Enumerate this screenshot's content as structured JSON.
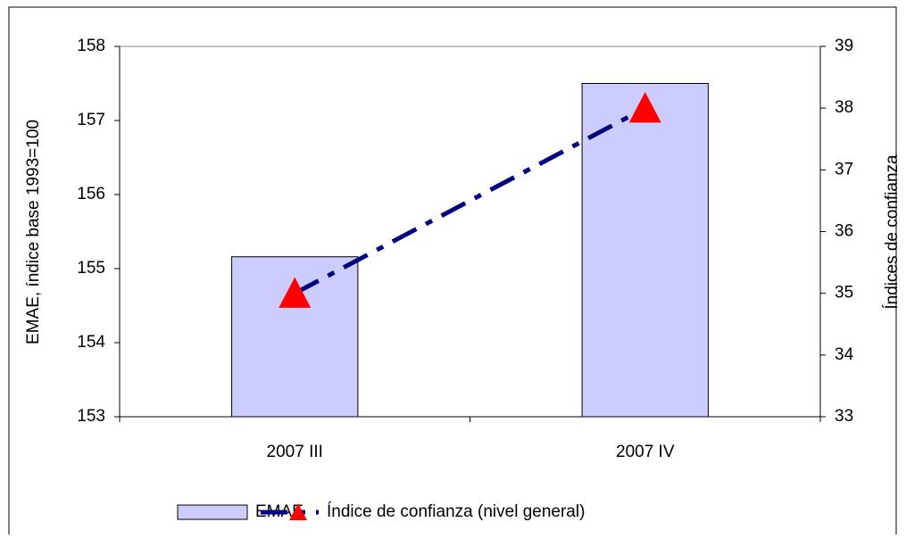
{
  "chart_data": {
    "type": "bar",
    "categories": [
      "2007 III",
      "2007 IV"
    ],
    "series": [
      {
        "name": "EMAE",
        "type": "bar",
        "color": "#ccccff",
        "values": [
          155.16,
          157.5
        ]
      },
      {
        "name": "Índice de confianza (nivel general)",
        "type": "line",
        "axis": "y2",
        "color": "#000080",
        "marker_color": "#ff0000",
        "values": [
          35.0,
          38.0
        ]
      }
    ],
    "y_label": "EMAE, índice base 1993=100",
    "y2_label": "Índices de confianza",
    "ylim": [
      153,
      158
    ],
    "yticks": [
      153,
      154,
      155,
      156,
      157,
      158
    ],
    "y2lim": [
      33,
      39
    ],
    "y2ticks": [
      33,
      34,
      35,
      36,
      37,
      38,
      39
    ],
    "legend": "bottom"
  }
}
